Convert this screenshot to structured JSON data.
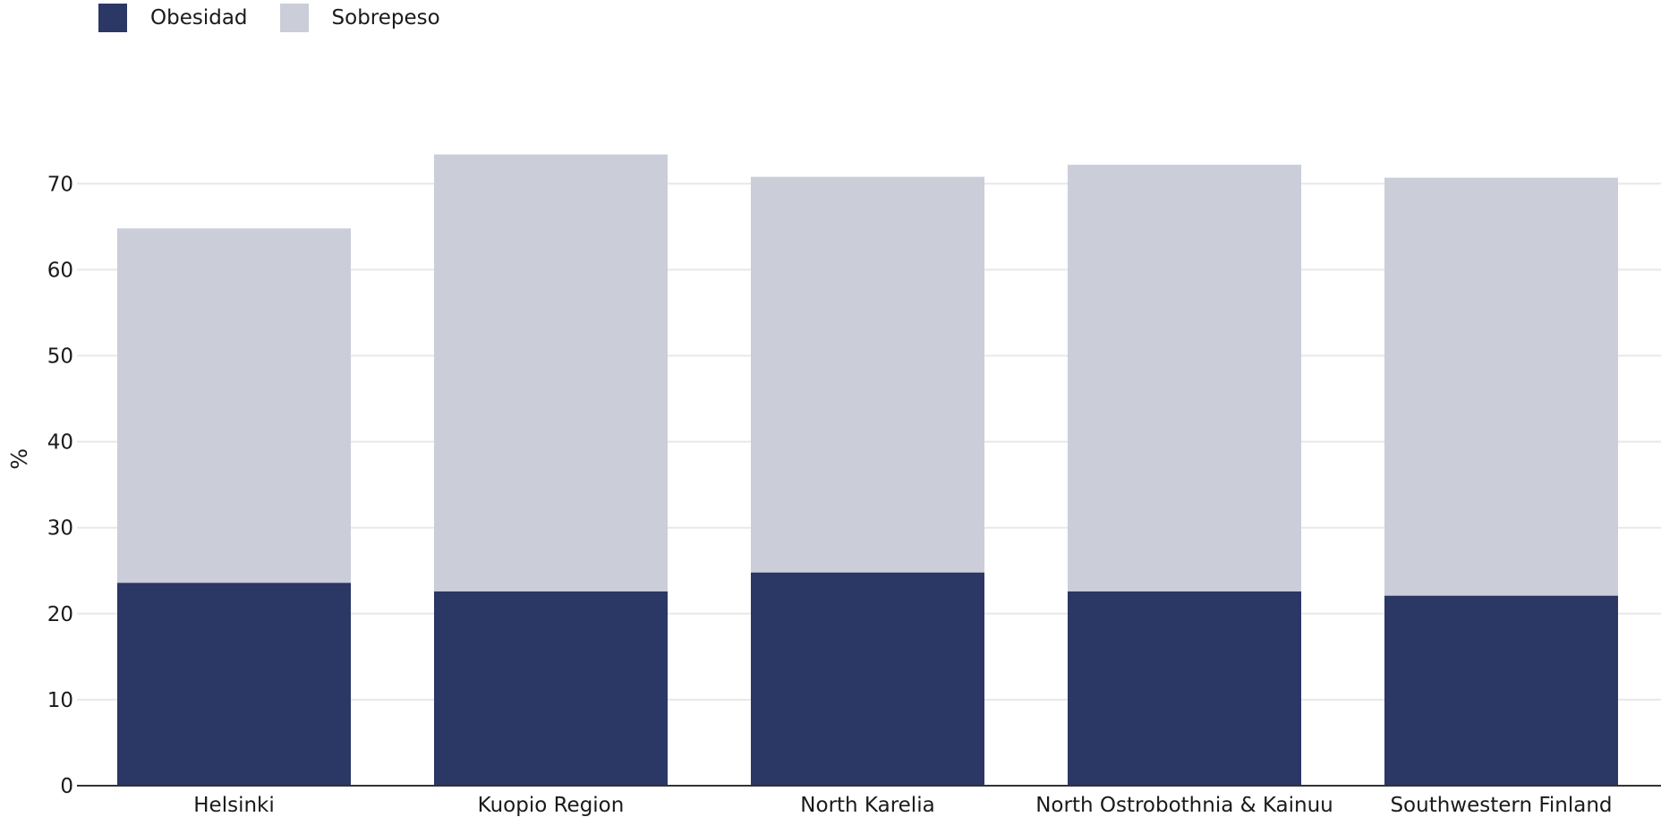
{
  "chart_data": {
    "type": "bar",
    "stacked": true,
    "categories": [
      "Helsinki",
      "Kuopio Region",
      "North Karelia",
      "North Ostrobothnia & Kainuu",
      "Southwestern Finland"
    ],
    "series": [
      {
        "name": "Obesidad",
        "color": "#2b3765",
        "values": [
          23.6,
          22.6,
          24.8,
          22.6,
          22.1
        ]
      },
      {
        "name": "Sobrepeso",
        "color": "#cbcdd9",
        "values": [
          41.2,
          50.8,
          46.0,
          49.6,
          48.6
        ]
      }
    ],
    "ylabel": "%",
    "xlabel": "",
    "ylim": [
      0,
      76
    ],
    "yticks": [
      0,
      10,
      20,
      30,
      40,
      50,
      60,
      70
    ],
    "grid": true,
    "legend_position": "top-left"
  }
}
